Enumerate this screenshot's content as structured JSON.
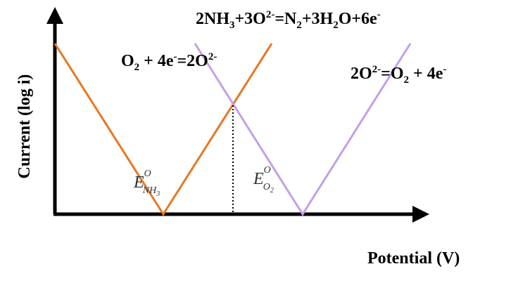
{
  "axis_labels": {
    "y": "Current (log i)",
    "x": "Potential (V)"
  },
  "reactions": [
    [
      "2NH",
      "3",
      "+3O",
      "2-",
      "=N",
      "2",
      "+3H",
      "2",
      "O+6e",
      "-"
    ],
    [
      "O",
      "2",
      " + 4e",
      "-",
      "=2O",
      "2-"
    ],
    [
      "2O",
      "2-",
      "=O",
      "2",
      " + 4e",
      "-"
    ]
  ],
  "potentials": [
    [
      "E",
      "O",
      "NH",
      "3"
    ],
    [
      "E",
      "O",
      "O",
      "2"
    ]
  ]
}
